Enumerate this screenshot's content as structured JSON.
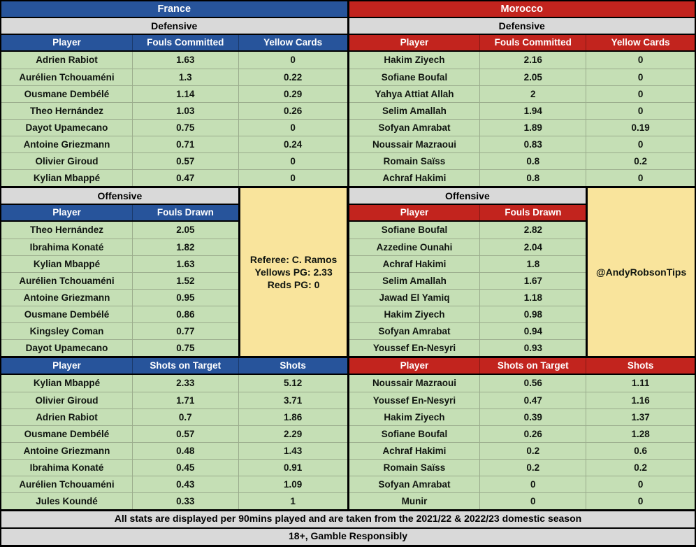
{
  "teams": [
    {
      "name": "France",
      "accent_color": "#27549B"
    },
    {
      "name": "Morocco",
      "accent_color": "#C2241E"
    }
  ],
  "labels": {
    "defensive": "Defensive",
    "offensive": "Offensive"
  },
  "side_boxes": {
    "referee_lines": [
      "Referee: C. Ramos",
      "Yellows PG: 2.33",
      "Reds PG: 0"
    ],
    "credit": "@AndyRobsonTips"
  },
  "footer": {
    "line1": "All stats are displayed per 90mins played and are taken from the 2021/22 & 2022/23 domestic season",
    "line2": "18+, Gamble Responsibly"
  },
  "style_colors": {
    "france_blue": "#27549B",
    "morocco_red": "#C2241E",
    "row_green": "#C5DFB5",
    "label_gray": "#D9D9D9",
    "box_yellow": "#F9E49C"
  },
  "chart_data": [
    {
      "type": "table",
      "title": "France Defensive",
      "columns": [
        "Player",
        "Fouls Committed",
        "Yellow Cards"
      ],
      "rows": [
        [
          "Adrien Rabiot",
          "1.63",
          "0"
        ],
        [
          "Aurélien Tchouaméni",
          "1.3",
          "0.22"
        ],
        [
          "Ousmane Dembélé",
          "1.14",
          "0.29"
        ],
        [
          "Theo Hernández",
          "1.03",
          "0.26"
        ],
        [
          "Dayot Upamecano",
          "0.75",
          "0"
        ],
        [
          "Antoine Griezmann",
          "0.71",
          "0.24"
        ],
        [
          "Olivier Giroud",
          "0.57",
          "0"
        ],
        [
          "Kylian Mbappé",
          "0.47",
          "0"
        ]
      ]
    },
    {
      "type": "table",
      "title": "France Offensive",
      "columns": [
        "Player",
        "Fouls Drawn"
      ],
      "rows": [
        [
          "Theo Hernández",
          "2.05"
        ],
        [
          "Ibrahima Konaté",
          "1.82"
        ],
        [
          "Kylian Mbappé",
          "1.63"
        ],
        [
          "Aurélien Tchouaméni",
          "1.52"
        ],
        [
          "Antoine Griezmann",
          "0.95"
        ],
        [
          "Ousmane Dembélé",
          "0.86"
        ],
        [
          "Kingsley Coman",
          "0.77"
        ],
        [
          "Dayot Upamecano",
          "0.75"
        ]
      ]
    },
    {
      "type": "table",
      "title": "France Shots",
      "columns": [
        "Player",
        "Shots on Target",
        "Shots"
      ],
      "rows": [
        [
          "Kylian Mbappé",
          "2.33",
          "5.12"
        ],
        [
          "Olivier Giroud",
          "1.71",
          "3.71"
        ],
        [
          "Adrien Rabiot",
          "0.7",
          "1.86"
        ],
        [
          "Ousmane Dembélé",
          "0.57",
          "2.29"
        ],
        [
          "Antoine Griezmann",
          "0.48",
          "1.43"
        ],
        [
          "Ibrahima Konaté",
          "0.45",
          "0.91"
        ],
        [
          "Aurélien Tchouaméni",
          "0.43",
          "1.09"
        ],
        [
          "Jules Koundé",
          "0.33",
          "1"
        ]
      ]
    },
    {
      "type": "table",
      "title": "Morocco Defensive",
      "columns": [
        "Player",
        "Fouls Committed",
        "Yellow Cards"
      ],
      "rows": [
        [
          "Hakim Ziyech",
          "2.16",
          "0"
        ],
        [
          "Sofiane Boufal",
          "2.05",
          "0"
        ],
        [
          "Yahya Attiat Allah",
          "2",
          "0"
        ],
        [
          "Selim Amallah",
          "1.94",
          "0"
        ],
        [
          "Sofyan Amrabat",
          "1.89",
          "0.19"
        ],
        [
          "Noussair Mazraoui",
          "0.83",
          "0"
        ],
        [
          "Romain Saïss",
          "0.8",
          "0.2"
        ],
        [
          "Achraf Hakimi",
          "0.8",
          "0"
        ]
      ]
    },
    {
      "type": "table",
      "title": "Morocco Offensive",
      "columns": [
        "Player",
        "Fouls Drawn"
      ],
      "rows": [
        [
          "Sofiane Boufal",
          "2.82"
        ],
        [
          "Azzedine Ounahi",
          "2.04"
        ],
        [
          "Achraf Hakimi",
          "1.8"
        ],
        [
          "Selim Amallah",
          "1.67"
        ],
        [
          "Jawad El Yamiq",
          "1.18"
        ],
        [
          "Hakim Ziyech",
          "0.98"
        ],
        [
          "Sofyan Amrabat",
          "0.94"
        ],
        [
          "Youssef En-Nesyri",
          "0.93"
        ]
      ]
    },
    {
      "type": "table",
      "title": "Morocco Shots",
      "columns": [
        "Player",
        "Shots on Target",
        "Shots"
      ],
      "rows": [
        [
          "Noussair Mazraoui",
          "0.56",
          "1.11"
        ],
        [
          "Youssef En-Nesyri",
          "0.47",
          "1.16"
        ],
        [
          "Hakim Ziyech",
          "0.39",
          "1.37"
        ],
        [
          "Sofiane Boufal",
          "0.26",
          "1.28"
        ],
        [
          "Achraf Hakimi",
          "0.2",
          "0.6"
        ],
        [
          "Romain Saïss",
          "0.2",
          "0.2"
        ],
        [
          "Sofyan Amrabat",
          "0",
          "0"
        ],
        [
          "Munir",
          "0",
          "0"
        ]
      ]
    }
  ]
}
